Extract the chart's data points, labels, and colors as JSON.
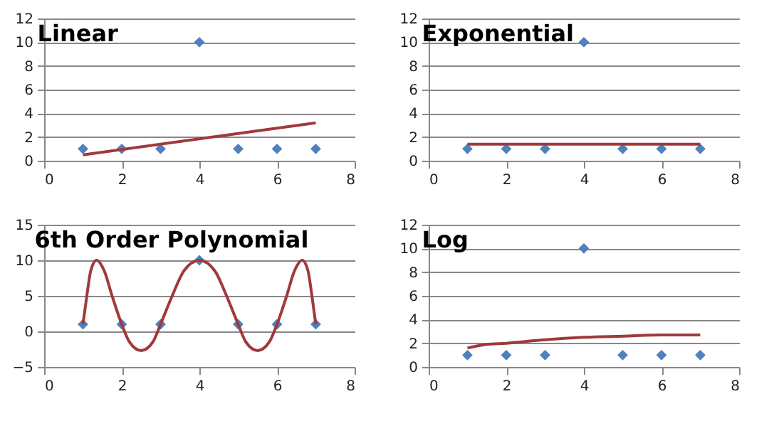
{
  "chart_data": [
    {
      "type": "scatter",
      "title": "Linear",
      "grid": "y",
      "xlim": [
        0,
        8
      ],
      "xticks": [
        0,
        2,
        4,
        6,
        8
      ],
      "ylim": [
        0,
        12
      ],
      "yticks": [
        0,
        2,
        4,
        6,
        8,
        10,
        12
      ],
      "series": [
        {
          "color": "#4f81bd",
          "marker": "diamond",
          "x": [
            1,
            2,
            3,
            4,
            5,
            6,
            7
          ],
          "values": [
            1,
            1,
            1,
            10,
            1,
            1,
            1
          ]
        },
        {
          "type": "line",
          "marker": "none",
          "color": "#a0393b",
          "x": [
            1,
            7
          ],
          "values": [
            0.5,
            3.2
          ]
        }
      ]
    },
    {
      "type": "scatter",
      "title": "Exponential",
      "grid": "y",
      "xlim": [
        0,
        8
      ],
      "xticks": [
        0,
        2,
        4,
        6,
        8
      ],
      "ylim": [
        0,
        12
      ],
      "yticks": [
        0,
        2,
        4,
        6,
        8,
        10,
        12
      ],
      "series": [
        {
          "color": "#4f81bd",
          "marker": "diamond",
          "x": [
            1,
            2,
            3,
            4,
            5,
            6,
            7
          ],
          "values": [
            1,
            1,
            1,
            10,
            1,
            1,
            1
          ]
        },
        {
          "type": "line",
          "marker": "none",
          "color": "#a0393b",
          "x": [
            1,
            7
          ],
          "values": [
            1.4,
            1.4
          ]
        }
      ]
    },
    {
      "type": "scatter",
      "title": "6th Order Polynomial",
      "grid": "y",
      "xlim": [
        0,
        8
      ],
      "xticks": [
        0,
        2,
        4,
        6,
        8
      ],
      "ylim": [
        -5,
        15
      ],
      "yticks": [
        -5,
        0,
        5,
        10,
        15
      ],
      "series": [
        {
          "color": "#4f81bd",
          "marker": "diamond",
          "x": [
            1,
            2,
            3,
            4,
            5,
            6,
            7
          ],
          "values": [
            1,
            1,
            1,
            10,
            1,
            1,
            1
          ]
        },
        {
          "type": "line",
          "marker": "none",
          "color": "#a0393b",
          "x": [
            1,
            1.1,
            1.2,
            1.35,
            1.55,
            1.75,
            2,
            2.2,
            2.5,
            2.8,
            3,
            3.3,
            3.6,
            4,
            4.4,
            4.7,
            5,
            5.2,
            5.5,
            5.8,
            6,
            6.25,
            6.45,
            6.65,
            6.8,
            6.9,
            7
          ],
          "values": [
            1,
            5,
            8.5,
            10,
            8.5,
            5,
            1,
            -1.5,
            -2.7,
            -1.5,
            1,
            5,
            8.5,
            10,
            8.5,
            5,
            1,
            -1.5,
            -2.7,
            -1.5,
            1,
            5,
            8.5,
            10,
            8.5,
            5,
            1
          ]
        }
      ]
    },
    {
      "type": "scatter",
      "title": "Log",
      "grid": "y",
      "xlim": [
        0,
        8
      ],
      "xticks": [
        0,
        2,
        4,
        6,
        8
      ],
      "ylim": [
        0,
        12
      ],
      "yticks": [
        0,
        2,
        4,
        6,
        8,
        10,
        12
      ],
      "series": [
        {
          "color": "#4f81bd",
          "marker": "diamond",
          "x": [
            1,
            2,
            3,
            4,
            5,
            6,
            7
          ],
          "values": [
            1,
            1,
            1,
            10,
            1,
            1,
            1
          ]
        },
        {
          "type": "line",
          "marker": "none",
          "color": "#a0393b",
          "x": [
            1,
            1.5,
            2,
            3,
            4,
            5,
            6,
            7
          ],
          "values": [
            1.6,
            1.9,
            2.0,
            2.3,
            2.5,
            2.6,
            2.7,
            2.7
          ]
        }
      ]
    }
  ]
}
